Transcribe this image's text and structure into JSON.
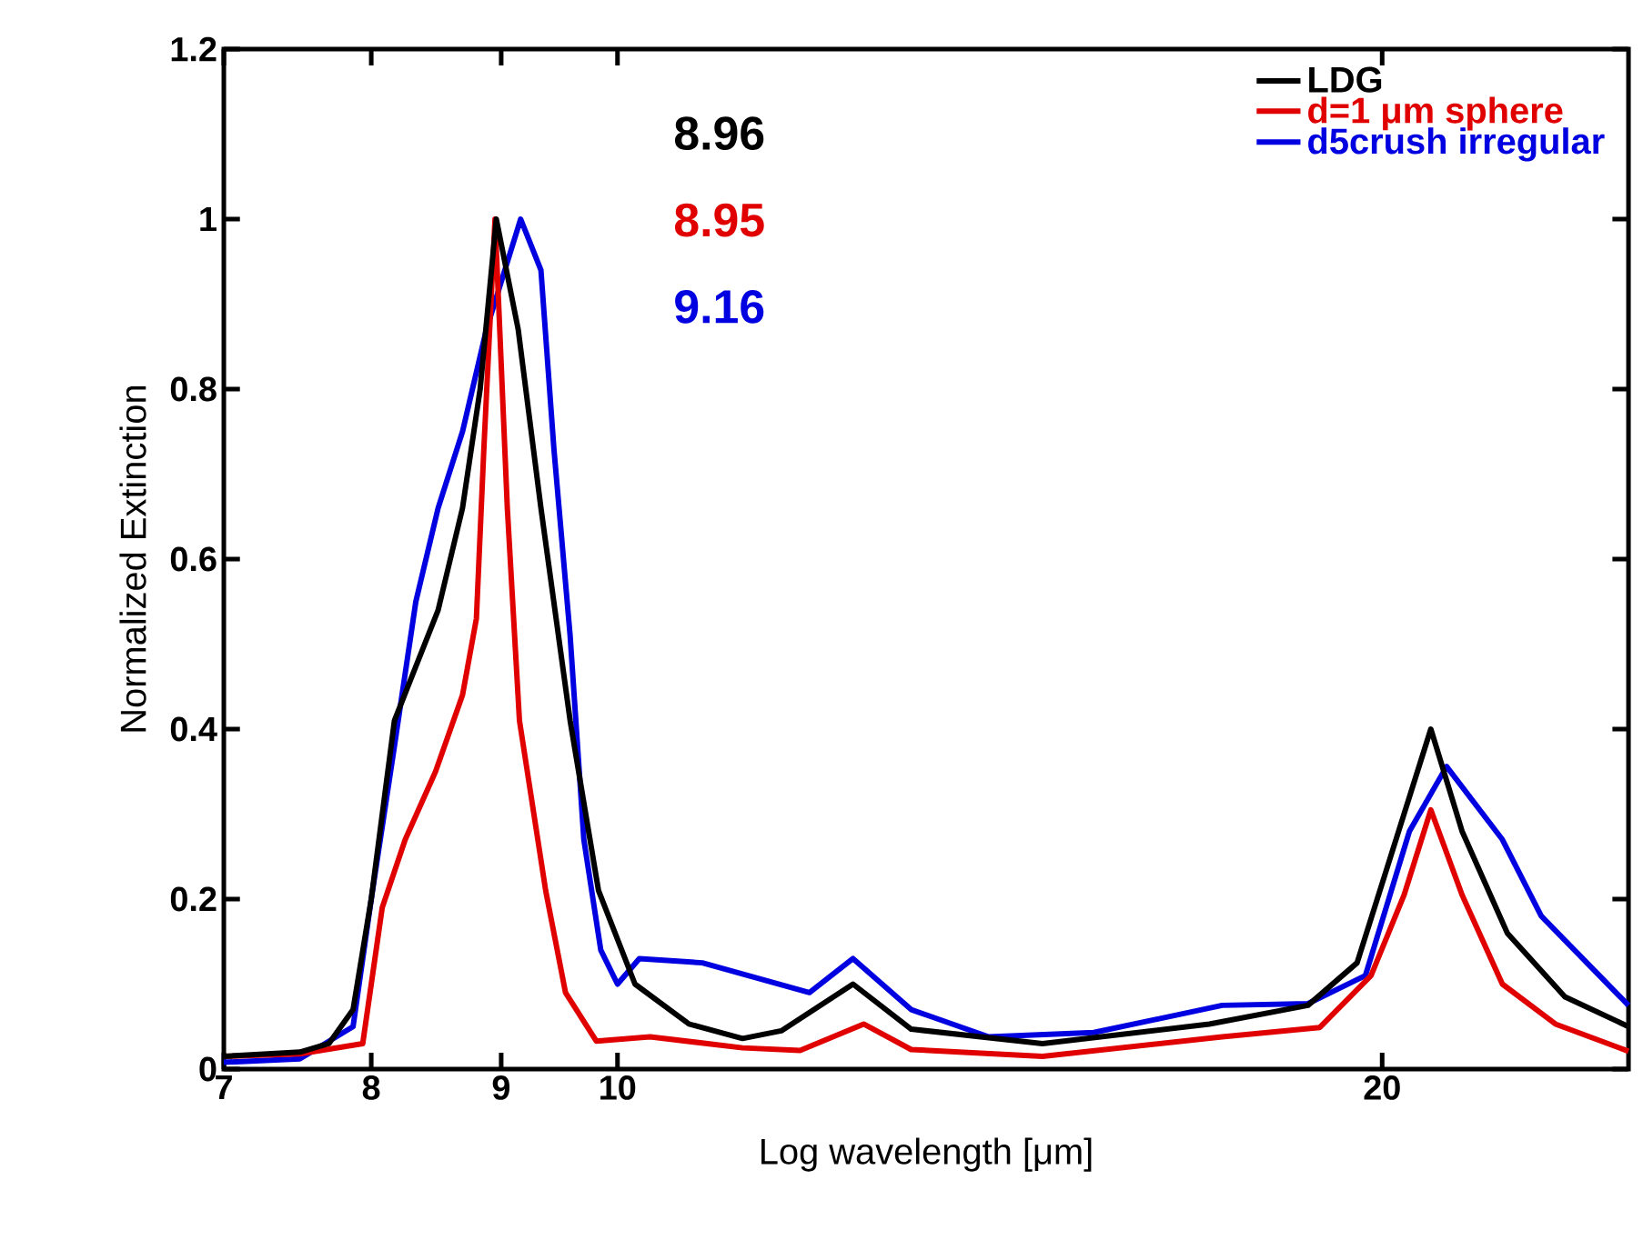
{
  "chart_data": {
    "type": "line",
    "xlabel": "Log wavelength [μm]",
    "ylabel": "Normalized Extinction",
    "log": "x",
    "xlim": [
      7,
      25
    ],
    "ylim": [
      0,
      1.2
    ],
    "xticks": [
      7,
      8,
      9,
      10,
      20
    ],
    "yticks": [
      0,
      0.2,
      0.4,
      0.6,
      0.8,
      1,
      1.2
    ],
    "grid": false,
    "legend": "top right",
    "marker": "none",
    "line_style": "solid",
    "annotations": [
      "8.96",
      "8.95",
      "9.16"
    ],
    "series": [
      {
        "name": "LDG",
        "color": "#000000",
        "x": [
          7.0,
          7.5,
          7.7,
          7.87,
          8.0,
          8.17,
          8.5,
          8.69,
          8.83,
          8.96,
          9.14,
          9.33,
          9.58,
          9.83,
          10.16,
          10.67,
          11.2,
          11.6,
          12.38,
          13.05,
          14.7,
          17.1,
          18.7,
          19.55,
          20.3,
          20.9,
          21.5,
          22.4,
          23.6,
          25
        ],
        "values": [
          0.015,
          0.02,
          0.03,
          0.07,
          0.2,
          0.41,
          0.54,
          0.66,
          0.8,
          1.0,
          0.87,
          0.66,
          0.41,
          0.21,
          0.1,
          0.053,
          0.036,
          0.045,
          0.1,
          0.047,
          0.03,
          0.053,
          0.075,
          0.125,
          0.28,
          0.4,
          0.28,
          0.16,
          0.085,
          0.05
        ]
      },
      {
        "name": "d=1 μm sphere",
        "color": "#e00000",
        "x": [
          7.0,
          7.5,
          7.94,
          8.08,
          8.25,
          8.48,
          8.69,
          8.8,
          8.86,
          8.95,
          9.05,
          9.15,
          9.37,
          9.54,
          9.81,
          10.3,
          11.2,
          11.8,
          12.5,
          13.05,
          14.7,
          17.3,
          18.9,
          19.8,
          20.4,
          20.9,
          21.5,
          22.3,
          23.4,
          25
        ],
        "values": [
          0.015,
          0.018,
          0.03,
          0.19,
          0.27,
          0.35,
          0.44,
          0.53,
          0.73,
          1.0,
          0.66,
          0.41,
          0.21,
          0.09,
          0.033,
          0.038,
          0.025,
          0.022,
          0.053,
          0.023,
          0.015,
          0.038,
          0.049,
          0.11,
          0.205,
          0.305,
          0.205,
          0.1,
          0.053,
          0.021
        ]
      },
      {
        "name": "d5crush irregular",
        "color": "#0000e0",
        "x": [
          7.0,
          7.5,
          7.87,
          8.0,
          8.17,
          8.33,
          8.5,
          8.69,
          8.88,
          9.16,
          9.33,
          9.44,
          9.58,
          9.7,
          9.85,
          10.0,
          10.2,
          10.8,
          11.9,
          12.38,
          13.05,
          14.0,
          15.4,
          17.3,
          18.7,
          19.7,
          20.5,
          21.2,
          22.3,
          23.1,
          25
        ],
        "values": [
          0.008,
          0.012,
          0.05,
          0.2,
          0.38,
          0.55,
          0.66,
          0.75,
          0.87,
          1.0,
          0.94,
          0.73,
          0.51,
          0.27,
          0.14,
          0.1,
          0.13,
          0.125,
          0.09,
          0.13,
          0.07,
          0.038,
          0.043,
          0.075,
          0.077,
          0.11,
          0.28,
          0.356,
          0.27,
          0.18,
          0.075
        ]
      }
    ]
  }
}
